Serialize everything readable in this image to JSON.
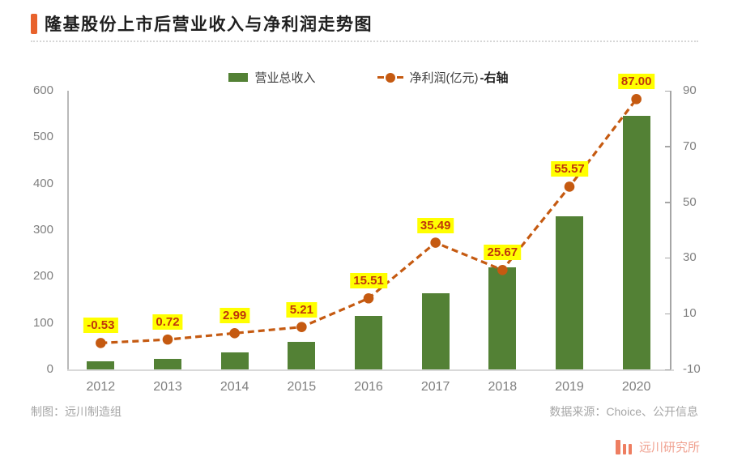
{
  "title": "隆基股份上市后营业收入与净利润走势图",
  "legend": {
    "bar_label": "营业总收入",
    "line_label": "净利润(亿元)",
    "line_label_suffix": "-右轴"
  },
  "footer": {
    "left": "制图：远川制造组",
    "right": "数据来源：Choice、公开信息"
  },
  "logo": {
    "icon": "three-bars-icon",
    "text": "远川研究所"
  },
  "colors": {
    "accent_orange": "#e8622c",
    "bar_green": "#538135",
    "line_orange": "#c55a11",
    "label_bg": "#ffff00",
    "label_text": "#bf360c",
    "axis_text": "#7f7f7f",
    "footer_text": "#a6a6a6",
    "logo_coral": "#ee7e61"
  },
  "chart_data": {
    "type": "bar",
    "subtype": "bar+line combo, dual axis",
    "categories": [
      "2012",
      "2013",
      "2014",
      "2015",
      "2016",
      "2017",
      "2018",
      "2019",
      "2020"
    ],
    "series": [
      {
        "name": "营业总收入",
        "type": "bar",
        "axis": "left",
        "values": [
          17.1,
          22.8,
          36.8,
          59.5,
          115.3,
          163.6,
          219.9,
          328.9,
          545.8
        ]
      },
      {
        "name": "净利润(亿元)",
        "type": "line",
        "style": "dashed",
        "axis": "right",
        "values": [
          -0.53,
          0.72,
          2.99,
          5.21,
          15.51,
          35.49,
          25.67,
          55.57,
          87.0
        ],
        "labels": [
          "-0.53",
          "0.72",
          "2.99",
          "5.21",
          "15.51",
          "35.49",
          "25.67",
          "55.57",
          "87.00"
        ]
      }
    ],
    "axis_left": {
      "min": 0,
      "max": 600,
      "ticks": [
        0,
        100,
        200,
        300,
        400,
        500,
        600
      ]
    },
    "axis_right": {
      "min": -10,
      "max": 90,
      "ticks": [
        -10,
        10,
        30,
        50,
        70,
        90
      ]
    },
    "grid": false,
    "legend_position": "top"
  }
}
